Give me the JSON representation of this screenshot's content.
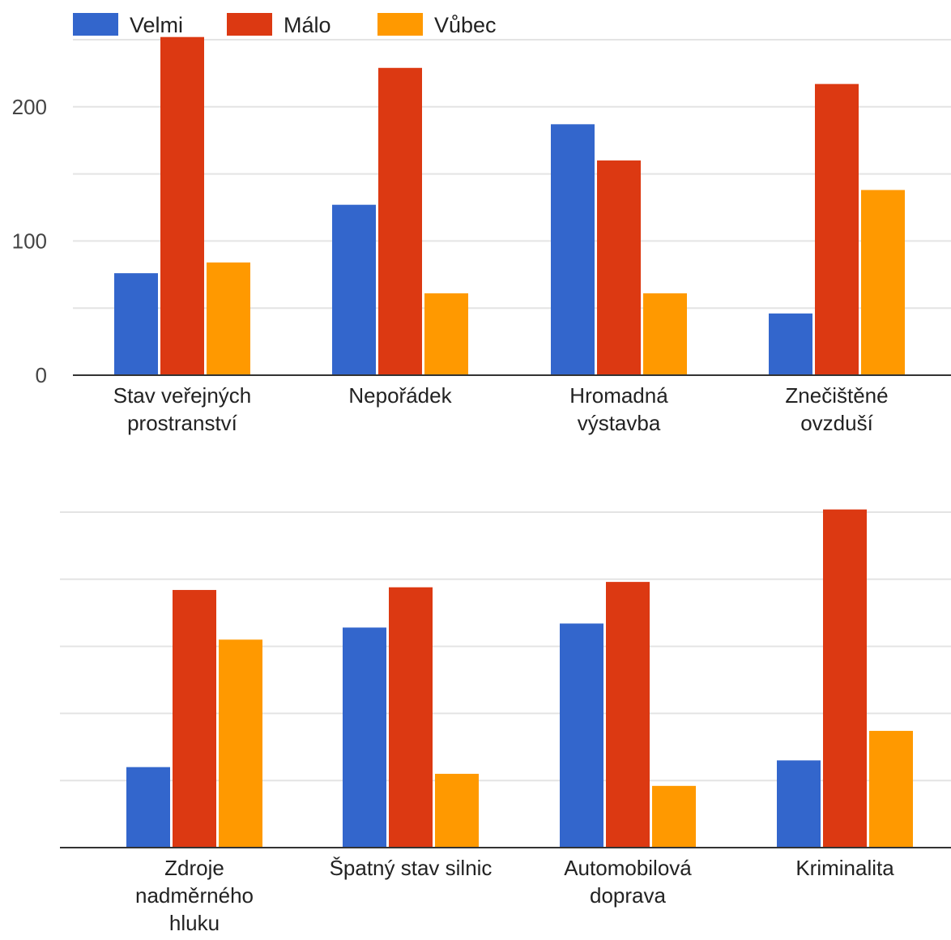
{
  "legend": [
    {
      "name": "Velmi",
      "color": "#3366cc"
    },
    {
      "name": "Málo",
      "color": "#dc3912"
    },
    {
      "name": "Vůbec",
      "color": "#ff9900"
    }
  ],
  "chart_data": [
    {
      "type": "bar",
      "categories": [
        [
          "Stav veřejných",
          "prostranství"
        ],
        [
          "Nepořádek"
        ],
        [
          "Hromadná",
          "výstavba"
        ],
        [
          "Znečištěné",
          "ovzduší"
        ]
      ],
      "series": [
        {
          "name": "Velmi",
          "values": [
            76,
            127,
            187,
            46
          ]
        },
        {
          "name": "Málo",
          "values": [
            252,
            229,
            160,
            217
          ]
        },
        {
          "name": "Vůbec",
          "values": [
            84,
            61,
            61,
            138
          ]
        }
      ],
      "y_ticks": [
        "0",
        "100",
        "200"
      ],
      "ylim": [
        0,
        250
      ],
      "gridlines": [
        0,
        50,
        100,
        150,
        200,
        250
      ],
      "legend_position": "top"
    },
    {
      "type": "bar",
      "categories": [
        [
          "Zdroje",
          "nadměrného",
          "hluku"
        ],
        [
          "Špatný stav silnic"
        ],
        [
          "Automobilová",
          "doprava"
        ],
        [
          "Kriminalita"
        ]
      ],
      "series": [
        {
          "name": "Velmi",
          "values": [
            60,
            164,
            167,
            65
          ]
        },
        {
          "name": "Málo",
          "values": [
            192,
            194,
            198,
            252
          ]
        },
        {
          "name": "Vůbec",
          "values": [
            155,
            55,
            46,
            87
          ]
        }
      ],
      "y_ticks": [],
      "ylim": [
        0,
        250
      ],
      "gridlines": [
        0,
        50,
        100,
        150,
        200,
        250
      ],
      "legend_position": "none"
    }
  ]
}
